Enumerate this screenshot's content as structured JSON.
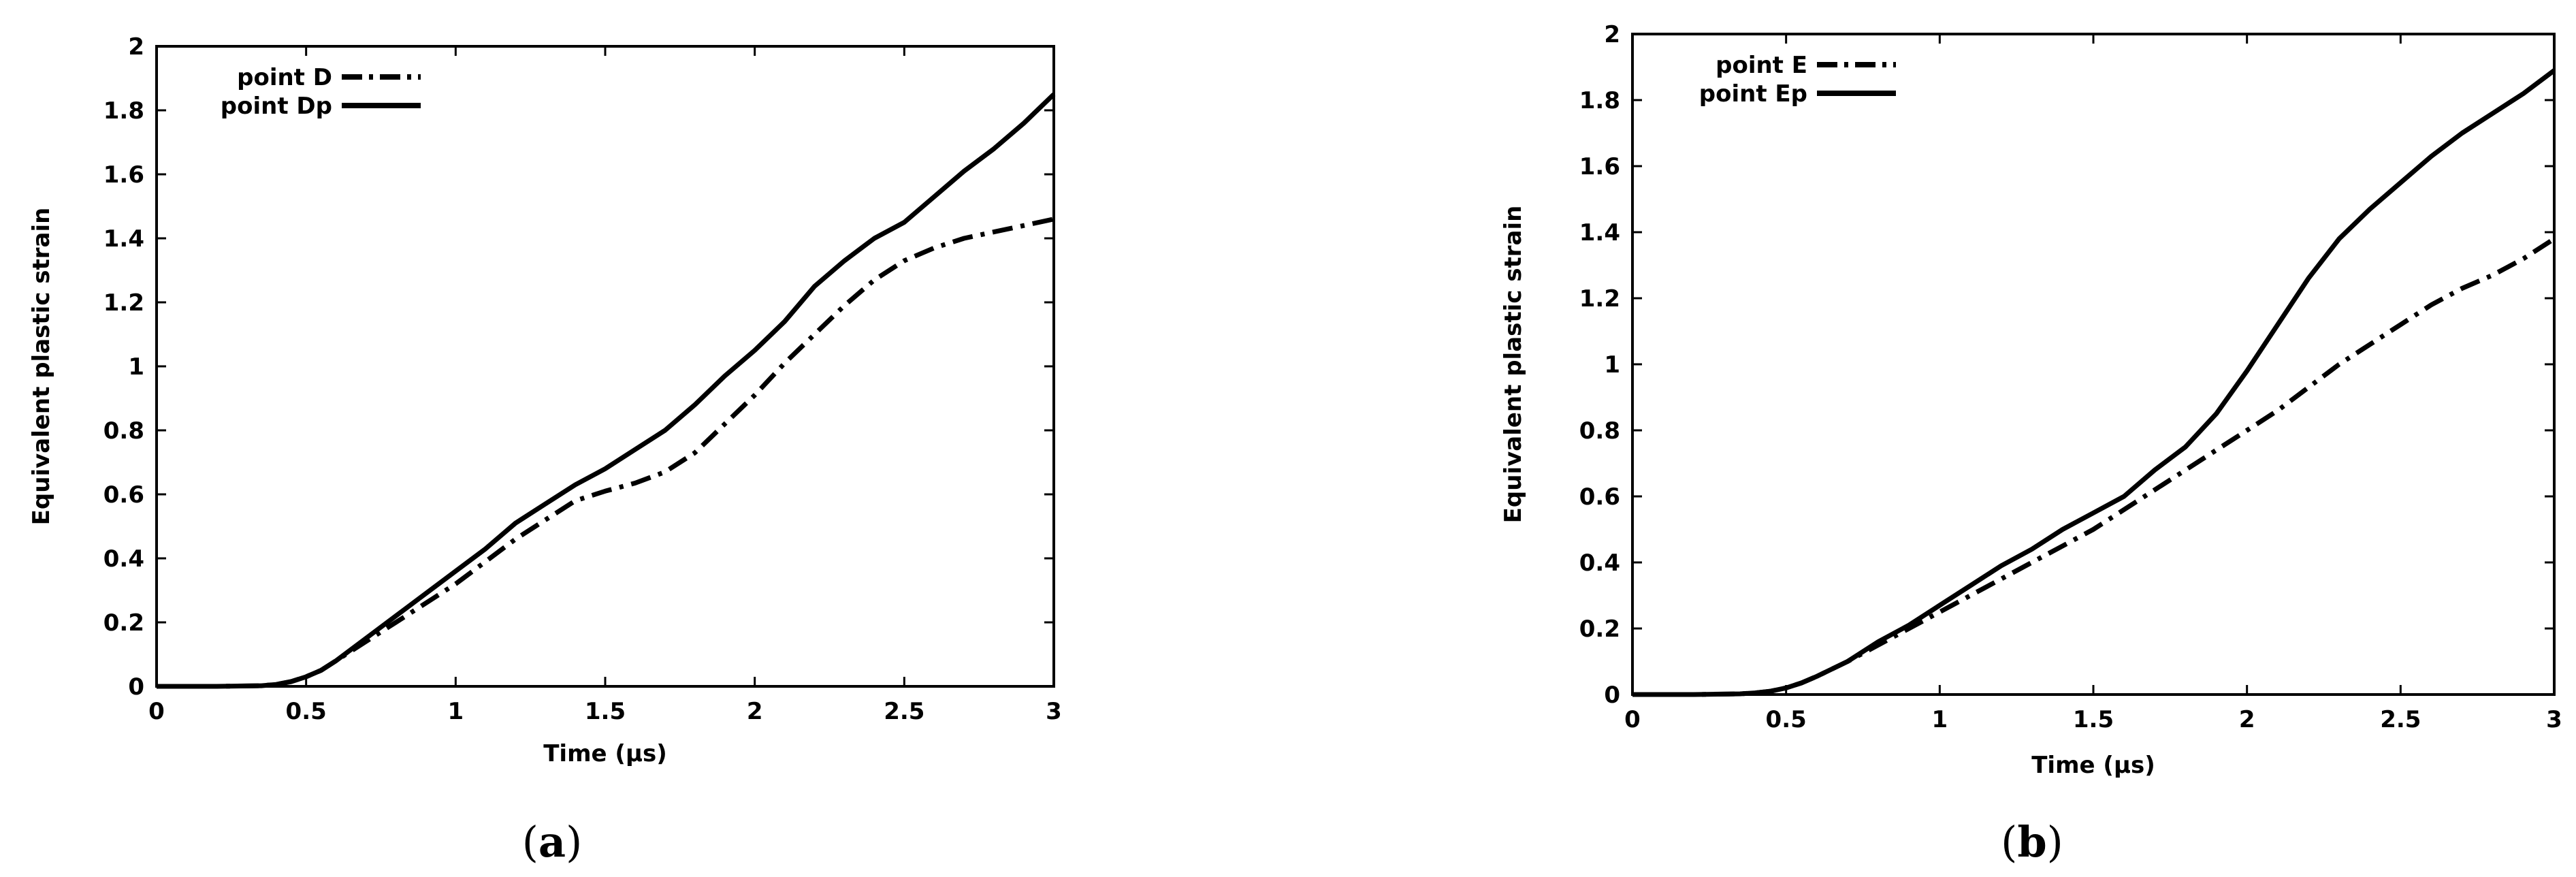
{
  "colors": {
    "line": "#000000",
    "background": "#ffffff"
  },
  "chart_data": [
    {
      "type": "line",
      "panel": "a",
      "caption_open": "(",
      "caption_letter": "a",
      "caption_close": ")",
      "title": "",
      "xlabel": "Time (µs)",
      "ylabel": "Equivalent plastic strain",
      "xlim": [
        0,
        3
      ],
      "ylim": [
        0,
        2
      ],
      "xticks": [
        0,
        0.5,
        1,
        1.5,
        2,
        2.5,
        3
      ],
      "xtick_labels": [
        "0",
        "0.5",
        "1",
        "1.5",
        "2",
        "2.5",
        "3"
      ],
      "yticks": [
        0,
        0.2,
        0.4,
        0.6,
        0.8,
        1,
        1.2,
        1.4,
        1.6,
        1.8,
        2
      ],
      "ytick_labels": [
        "0",
        "0.2",
        "0.4",
        "0.6",
        "0.8",
        "1",
        "1.2",
        "1.4",
        "1.6",
        "1.8",
        "2"
      ],
      "grid": false,
      "legend_position": "top-left",
      "series": [
        {
          "name": "point D",
          "style": "dash-dot",
          "x": [
            0,
            0.2,
            0.35,
            0.4,
            0.45,
            0.5,
            0.55,
            0.6,
            0.7,
            0.8,
            0.9,
            1.0,
            1.1,
            1.2,
            1.3,
            1.4,
            1.5,
            1.6,
            1.7,
            1.8,
            1.9,
            2.0,
            2.1,
            2.2,
            2.3,
            2.4,
            2.5,
            2.6,
            2.7,
            2.8,
            2.9,
            3.0
          ],
          "y": [
            0,
            0,
            0.002,
            0.006,
            0.015,
            0.03,
            0.05,
            0.08,
            0.14,
            0.2,
            0.26,
            0.32,
            0.39,
            0.46,
            0.52,
            0.58,
            0.61,
            0.635,
            0.67,
            0.73,
            0.82,
            0.91,
            1.01,
            1.1,
            1.19,
            1.27,
            1.33,
            1.37,
            1.4,
            1.42,
            1.44,
            1.46
          ]
        },
        {
          "name": "point Dp",
          "style": "solid",
          "x": [
            0,
            0.2,
            0.35,
            0.4,
            0.45,
            0.5,
            0.55,
            0.6,
            0.7,
            0.8,
            0.9,
            1.0,
            1.1,
            1.2,
            1.3,
            1.4,
            1.5,
            1.6,
            1.7,
            1.8,
            1.9,
            2.0,
            2.1,
            2.2,
            2.3,
            2.4,
            2.5,
            2.6,
            2.7,
            2.8,
            2.9,
            3.0
          ],
          "y": [
            0,
            0,
            0.002,
            0.006,
            0.015,
            0.03,
            0.05,
            0.08,
            0.15,
            0.22,
            0.29,
            0.36,
            0.43,
            0.51,
            0.57,
            0.63,
            0.68,
            0.74,
            0.8,
            0.88,
            0.97,
            1.05,
            1.14,
            1.25,
            1.33,
            1.4,
            1.45,
            1.53,
            1.61,
            1.68,
            1.76,
            1.85
          ]
        }
      ]
    },
    {
      "type": "line",
      "panel": "b",
      "caption_open": "(",
      "caption_letter": "b",
      "caption_close": ")",
      "title": "",
      "xlabel": "Time (µs)",
      "ylabel": "Equivalent plastic strain",
      "xlim": [
        0,
        3
      ],
      "ylim": [
        0,
        2
      ],
      "xticks": [
        0,
        0.5,
        1,
        1.5,
        2,
        2.5,
        3
      ],
      "xtick_labels": [
        "0",
        "0.5",
        "1",
        "1.5",
        "2",
        "2.5",
        "3"
      ],
      "yticks": [
        0,
        0.2,
        0.4,
        0.6,
        0.8,
        1,
        1.2,
        1.4,
        1.6,
        1.8,
        2
      ],
      "ytick_labels": [
        "0",
        "0.2",
        "0.4",
        "0.6",
        "0.8",
        "1",
        "1.2",
        "1.4",
        "1.6",
        "1.8",
        "2"
      ],
      "grid": false,
      "legend_position": "top-left",
      "series": [
        {
          "name": "point E",
          "style": "dash-dot",
          "x": [
            0,
            0.2,
            0.35,
            0.4,
            0.45,
            0.5,
            0.55,
            0.6,
            0.7,
            0.8,
            0.9,
            1.0,
            1.1,
            1.2,
            1.3,
            1.4,
            1.5,
            1.6,
            1.7,
            1.8,
            1.9,
            2.0,
            2.1,
            2.2,
            2.3,
            2.4,
            2.5,
            2.6,
            2.7,
            2.8,
            2.9,
            3.0
          ],
          "y": [
            0,
            0,
            0.002,
            0.005,
            0.01,
            0.02,
            0.035,
            0.055,
            0.1,
            0.15,
            0.2,
            0.25,
            0.3,
            0.35,
            0.4,
            0.45,
            0.5,
            0.56,
            0.62,
            0.68,
            0.74,
            0.8,
            0.86,
            0.93,
            1.0,
            1.06,
            1.12,
            1.18,
            1.23,
            1.27,
            1.32,
            1.38
          ]
        },
        {
          "name": "point Ep",
          "style": "solid",
          "x": [
            0,
            0.2,
            0.35,
            0.4,
            0.45,
            0.5,
            0.55,
            0.6,
            0.7,
            0.8,
            0.9,
            1.0,
            1.1,
            1.2,
            1.3,
            1.4,
            1.5,
            1.6,
            1.7,
            1.8,
            1.9,
            2.0,
            2.1,
            2.2,
            2.3,
            2.4,
            2.5,
            2.6,
            2.7,
            2.8,
            2.9,
            3.0
          ],
          "y": [
            0,
            0,
            0.002,
            0.005,
            0.01,
            0.02,
            0.035,
            0.055,
            0.1,
            0.16,
            0.21,
            0.27,
            0.33,
            0.39,
            0.44,
            0.5,
            0.55,
            0.6,
            0.68,
            0.75,
            0.85,
            0.98,
            1.12,
            1.26,
            1.38,
            1.47,
            1.55,
            1.63,
            1.7,
            1.76,
            1.82,
            1.89
          ]
        }
      ]
    }
  ]
}
